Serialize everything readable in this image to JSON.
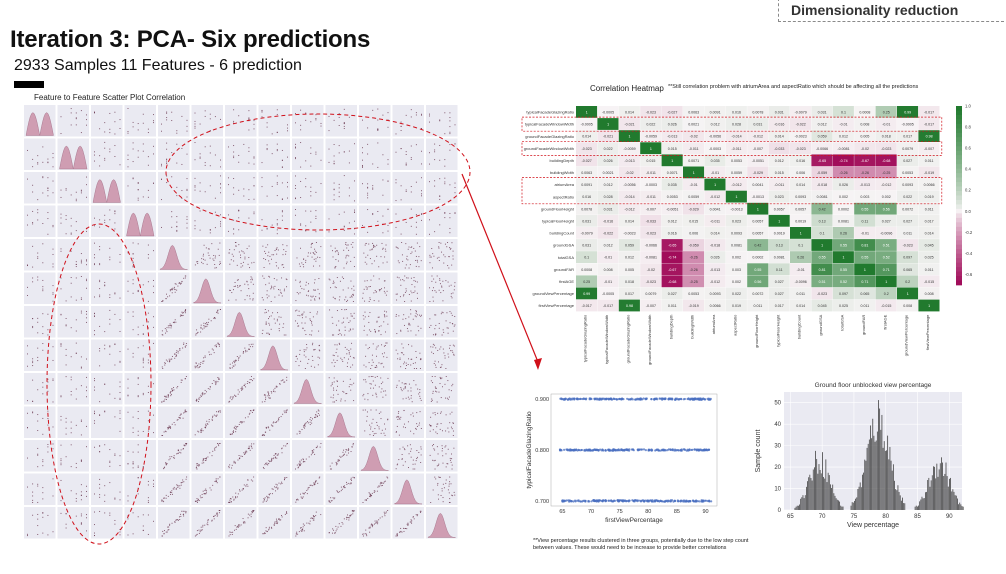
{
  "tag": "Dimensionality reduction",
  "title": "Iteration 3: PCA- Six predictions",
  "subtitle": "2933 Samples 11 Features - 6 prediction",
  "scatter_matrix_title": "Feature to Feature Scatter Plot Correlation",
  "heatmap_title": "Correlation Heatmap",
  "heatmap_note": "**Still correlation problem with atriumArea and aspectRatio which should be affecting all the predictions",
  "bottom_note": "**View percentage results clustered in three groups, potentially due to the low step count between values. These would need to be increase to provide better correlations",
  "colors": {
    "positive": "#217a2e",
    "negative": "#a10d5a",
    "neutral": "#f7f4f5",
    "points": "#4a6fc0",
    "bars": "#444444",
    "kde": "#c98aa3",
    "dots": "#6e3d55",
    "annot": "#d0101a"
  },
  "chart_data": [
    {
      "type": "heatmap",
      "title": "Correlation Heatmap",
      "labels": [
        "typicalFacadeGlazingRatio",
        "typicalFacadeWindowWidth",
        "groundFacadeGlazingRatio",
        "groundFacadeWindowWidth",
        "buildingDepth",
        "buildingWidth",
        "atriumArea",
        "aspectRatio",
        "groundFloorHeight",
        "typicalFloorHeight",
        "buildingCount",
        "groundGSA",
        "totalGSA",
        "groundFAR",
        "firstAGE",
        "groundViewPercentage",
        "firstViewPercentage"
      ],
      "matrix": [
        [
          1,
          -0.0005,
          0.014,
          -0.023,
          -0.027,
          0.0063,
          0.0091,
          0.016,
          0.0078,
          0.031,
          -0.0079,
          0.031,
          0.1,
          0.0008,
          0.25,
          0.99,
          -0.017
        ],
        [
          -0.0005,
          1,
          -0.021,
          0.022,
          0.026,
          0.0021,
          0.012,
          0.028,
          0.031,
          -0.016,
          -0.022,
          0.012,
          -0.01,
          0.008,
          -0.01,
          -0.0005,
          -0.017
        ],
        [
          0.014,
          -0.021,
          1,
          -0.0059,
          -0.013,
          -0.02,
          -0.0056,
          -0.014,
          -0.012,
          0.014,
          -0.0023,
          0.059,
          0.012,
          0.005,
          0.018,
          0.017,
          0.98
        ],
        [
          -0.023,
          0.022,
          -0.0059,
          1,
          0.015,
          -0.011,
          -0.0003,
          -0.011,
          -0.007,
          -0.033,
          -0.023,
          -0.0066,
          -0.0081,
          -0.02,
          -0.023,
          0.0079,
          -0.007
        ],
        [
          -0.027,
          0.026,
          -0.013,
          0.015,
          1,
          0.0071,
          0.035,
          0.0053,
          -0.0051,
          0.012,
          0.016,
          -0.65,
          -0.74,
          -0.67,
          -0.68,
          0.027,
          0.011
        ],
        [
          0.0063,
          0.0021,
          -0.02,
          -0.011,
          0.0071,
          1,
          -0.01,
          0.0059,
          -0.029,
          0.015,
          0.006,
          -0.059,
          -0.26,
          -0.26,
          -0.25,
          0.0053,
          -0.019
        ],
        [
          0.0091,
          0.012,
          -0.0056,
          -0.0003,
          0.035,
          -0.01,
          1,
          -0.012,
          0.0041,
          -0.011,
          0.014,
          -0.018,
          0.026,
          -0.013,
          -0.012,
          0.0093,
          0.0066
        ],
        [
          0.016,
          0.028,
          -0.014,
          -0.011,
          0.0053,
          0.0059,
          -0.012,
          1,
          -0.0013,
          0.023,
          0.0093,
          0.0081,
          0.002,
          0.003,
          0.002,
          0.022,
          0.019
        ],
        [
          0.0078,
          0.031,
          -0.012,
          -0.007,
          -0.0051,
          -0.029,
          0.0041,
          -0.0013,
          1,
          0.0057,
          0.0057,
          0.42,
          0.0002,
          0.55,
          0.56,
          0.0072,
          0.011
        ],
        [
          0.031,
          -0.016,
          0.014,
          -0.033,
          0.012,
          0.015,
          -0.011,
          0.023,
          0.0057,
          1,
          0.0019,
          0.13,
          0.0081,
          0.11,
          0.027,
          0.027,
          0.017
        ],
        [
          -0.0079,
          -0.022,
          -0.0023,
          -0.023,
          0.016,
          0.006,
          0.014,
          0.0093,
          0.0057,
          0.0019,
          1,
          0.1,
          0.26,
          -0.01,
          -0.0096,
          0.011,
          0.014
        ],
        [
          0.031,
          0.012,
          0.059,
          -0.0066,
          -0.65,
          -0.059,
          -0.018,
          0.0081,
          0.42,
          0.13,
          0.1,
          1,
          0.55,
          0.81,
          0.51,
          -0.023,
          0.045
        ],
        [
          0.1,
          -0.01,
          0.012,
          -0.0081,
          -0.74,
          -0.26,
          0.026,
          0.002,
          0.0002,
          0.0081,
          0.26,
          0.55,
          1,
          0.55,
          0.52,
          0.097,
          0.025
        ],
        [
          0.0008,
          0.008,
          0.005,
          -0.02,
          -0.67,
          -0.26,
          -0.013,
          0.003,
          0.55,
          0.11,
          -0.01,
          0.81,
          0.55,
          1,
          0.71,
          0.065,
          0.011
        ],
        [
          0.25,
          -0.01,
          0.018,
          -0.023,
          -0.68,
          -0.25,
          -0.012,
          0.002,
          0.56,
          0.027,
          -0.0096,
          0.51,
          0.52,
          0.71,
          1,
          0.2,
          -0.015
        ],
        [
          0.99,
          -0.0005,
          0.017,
          0.0079,
          0.027,
          0.0053,
          0.0093,
          0.022,
          0.0072,
          0.027,
          0.011,
          -0.023,
          0.097,
          0.065,
          0.2,
          1,
          0.008
        ],
        [
          -0.017,
          -0.017,
          0.98,
          -0.007,
          0.011,
          -0.019,
          0.0066,
          0.019,
          0.011,
          0.017,
          0.014,
          0.045,
          0.025,
          0.011,
          -0.015,
          0.008,
          1
        ]
      ],
      "colorbar_ticks": [
        1.0,
        0.8,
        0.6,
        0.4,
        0.2,
        0.0,
        -0.2,
        -0.4,
        -0.6
      ],
      "vmin": -0.7,
      "vmax": 1.0
    },
    {
      "type": "scatter",
      "title": "",
      "xlabel": "firstViewPercentage",
      "ylabel": "typicalFacadeGlazingRatio",
      "xlim": [
        63,
        92
      ],
      "ylim": [
        0.69,
        0.91
      ],
      "xticks": [
        65,
        70,
        75,
        80,
        85,
        90
      ],
      "yticks": [
        0.7,
        0.8,
        0.9
      ],
      "series": [
        {
          "x_range": [
            64.5,
            91
          ],
          "y": 0.9
        },
        {
          "x_range": [
            64.5,
            91
          ],
          "y": 0.8
        },
        {
          "x_range": [
            64.5,
            91
          ],
          "y": 0.7
        }
      ]
    },
    {
      "type": "bar",
      "title": "Ground floor unblocked view percentage",
      "xlabel": "View percentage",
      "ylabel": "Sample count",
      "xlim": [
        64,
        92
      ],
      "ylim": [
        0,
        55
      ],
      "xticks": [
        65,
        70,
        75,
        80,
        85,
        90
      ],
      "yticks": [
        0,
        10,
        20,
        30,
        40,
        50
      ],
      "clusters": [
        {
          "center": 69.5,
          "peak": 30,
          "width": 1.6
        },
        {
          "center": 78.8,
          "peak": 54,
          "width": 1.8
        },
        {
          "center": 88.4,
          "peak": 28,
          "width": 1.6
        }
      ]
    }
  ]
}
